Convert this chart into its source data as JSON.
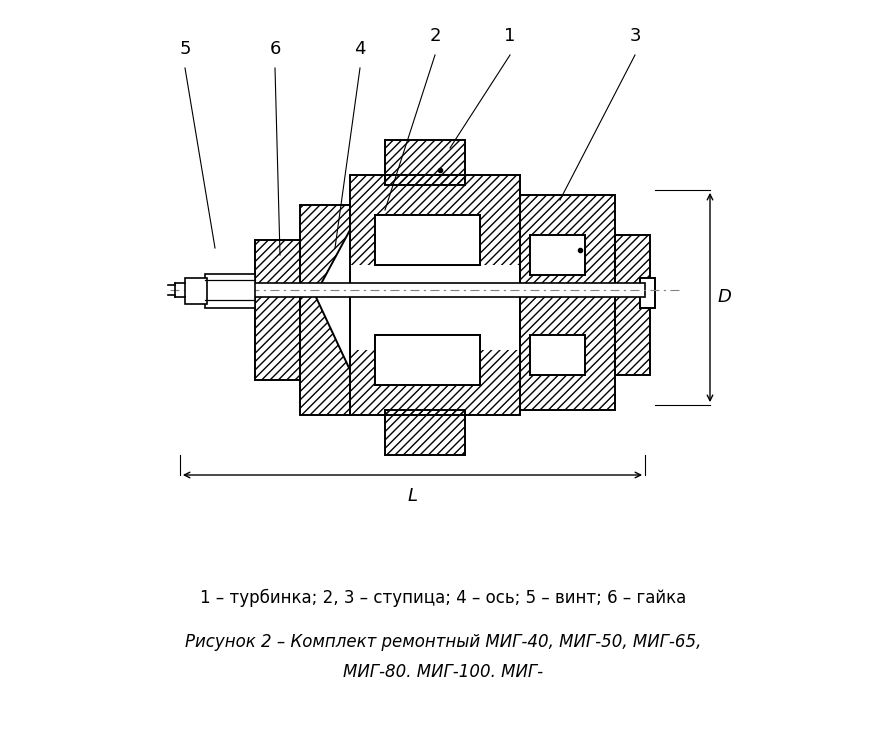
{
  "bg_color": "#ffffff",
  "dim_D": "D",
  "dim_L": "L",
  "caption_line1": "1 – турбинка; 2, 3 – ступица; 4 – ось; 5 – винт; 6 – гайка",
  "caption_line2": "Рисунок 2 – Комплект ремонтный МИГ-40, МИГ-50, МИГ-65,",
  "caption_line3": "МИГ-80. МИГ-100. МИГ-"
}
